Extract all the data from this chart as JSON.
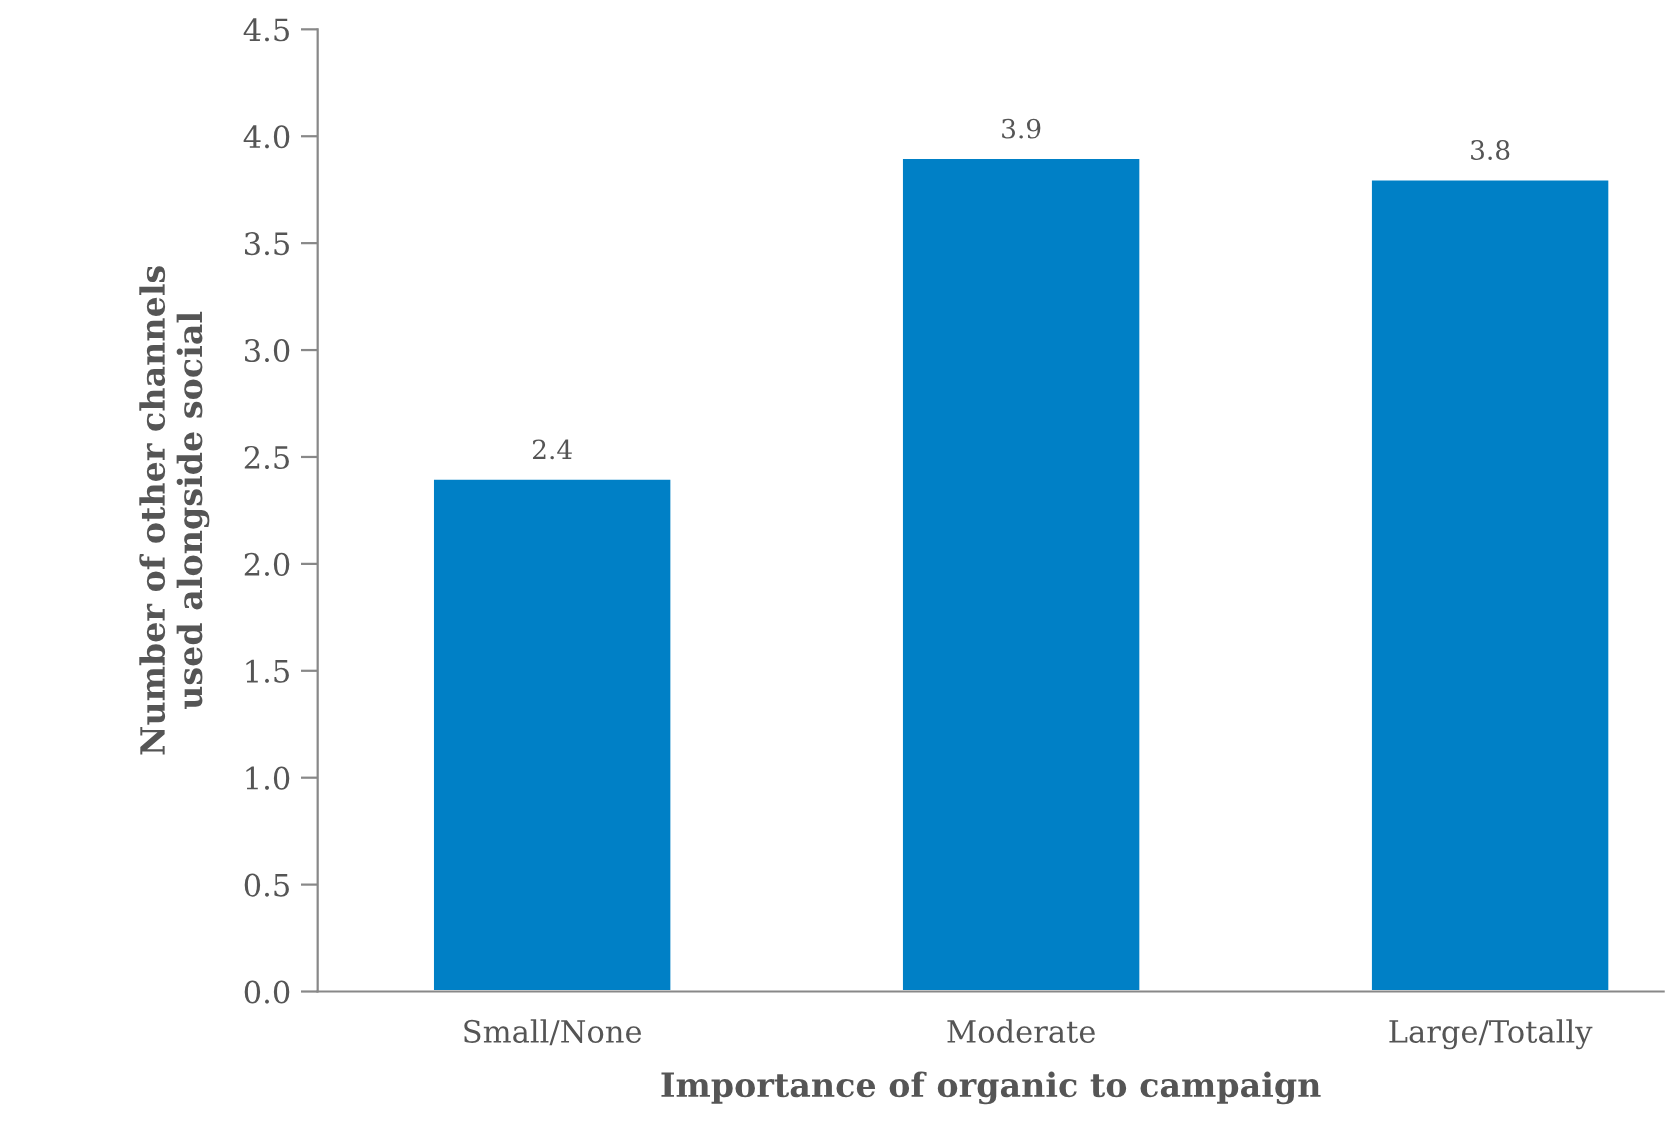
{
  "chart_data": {
    "type": "bar",
    "categories": [
      "Small/None",
      "Moderate",
      "Large/Totally"
    ],
    "values": [
      2.4,
      3.9,
      3.8
    ],
    "color": "#0080c6",
    "xlabel": "Importance of organic to campaign",
    "ylabel": "Number of other channels\nused alongside social",
    "ylim": [
      0,
      4.5
    ],
    "yticks": [
      "0.0",
      "0.5",
      "1.0",
      "1.5",
      "2.0",
      "2.5",
      "3.0",
      "3.5",
      "4.0",
      "4.5"
    ],
    "data_labels": true,
    "grid": false,
    "legend": false
  }
}
